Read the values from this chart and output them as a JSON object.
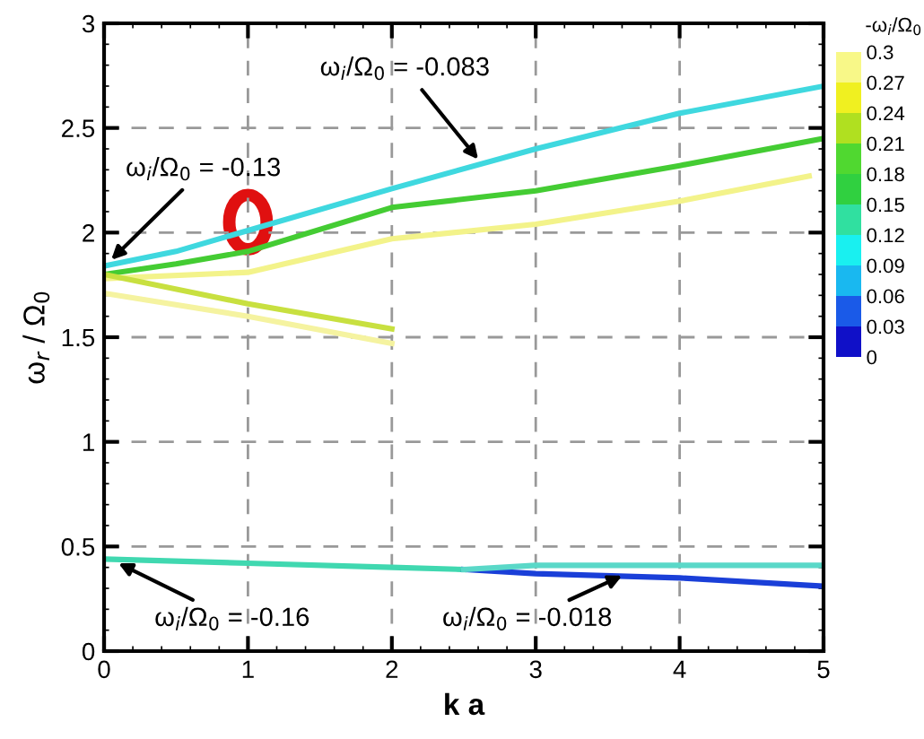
{
  "chart_data": {
    "type": "line",
    "xlabel": "k a",
    "ylabel": "ω$_{r}$ / Ω$_{0}$",
    "clabel": "-ω$_{i}$/Ω$_{0}$",
    "xlim": [
      0,
      5
    ],
    "ylim": [
      0,
      3
    ],
    "xticks": [
      0,
      1,
      2,
      3,
      4,
      5
    ],
    "yticks": [
      0,
      0.5,
      1,
      1.5,
      2,
      2.5,
      3
    ],
    "clim": [
      0,
      0.3
    ],
    "cticks": [
      0,
      0.03,
      0.06,
      0.09,
      0.12,
      0.15,
      0.18,
      0.21,
      0.24,
      0.27,
      0.3
    ],
    "grid": true,
    "line_style": "solid",
    "marker": "none",
    "series": [
      {
        "color": "#3fd8df",
        "x": [
          0,
          0.5,
          1,
          2,
          3,
          4,
          5
        ],
        "values": [
          1.84,
          1.91,
          2.01,
          2.21,
          2.4,
          2.57,
          2.7
        ]
      },
      {
        "color": "#44cc33",
        "x": [
          0,
          0.5,
          1,
          2,
          3,
          4,
          5
        ],
        "values": [
          1.8,
          1.85,
          1.91,
          2.12,
          2.2,
          2.32,
          2.45
        ]
      },
      {
        "color": "#f3f38a",
        "x": [
          0,
          1,
          2,
          3,
          4,
          4.9
        ],
        "values": [
          1.78,
          1.81,
          1.97,
          2.04,
          2.15,
          2.27
        ]
      },
      {
        "color": "#c8e040",
        "x": [
          0,
          1,
          2
        ],
        "values": [
          1.8,
          1.66,
          1.54
        ]
      },
      {
        "color": "#f5f3a0",
        "x": [
          0,
          1,
          2
        ],
        "values": [
          1.71,
          1.6,
          1.47
        ]
      },
      {
        "color": "#40d8b0",
        "x": [
          0,
          1,
          2,
          2.5
        ],
        "values": [
          0.44,
          0.42,
          0.4,
          0.39
        ]
      },
      {
        "color": "#1a3fd8",
        "x": [
          2.5,
          3,
          4,
          5
        ],
        "values": [
          0.39,
          0.37,
          0.35,
          0.31
        ]
      },
      {
        "color": "#5ad8c8",
        "x": [
          2.5,
          3,
          4,
          5
        ],
        "values": [
          0.39,
          0.41,
          0.41,
          0.41
        ]
      }
    ],
    "annotations": [
      {
        "text": "ω$_{i}$/Ω$_{0}$ = -0.13",
        "x": 0.05,
        "y": 1.87
      },
      {
        "text": "ω$_{i}$/Ω$_{0}$ = -0.083",
        "x": 2.6,
        "y": 2.35
      },
      {
        "text": "ω$_{i}$/Ω$_{0}$ = -0.16",
        "x": 0.1,
        "y": 0.42
      },
      {
        "text": "ω$_{i}$/Ω$_{0}$ = -0.018",
        "x": 3.6,
        "y": 0.36
      }
    ]
  }
}
